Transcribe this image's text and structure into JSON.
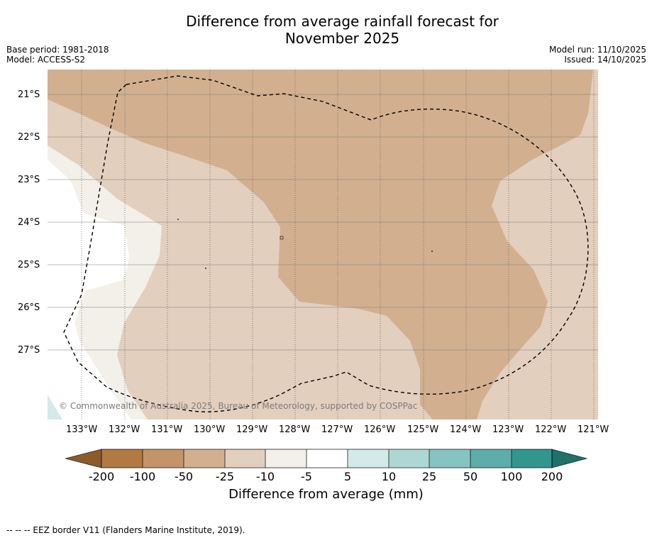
{
  "title_line1": "Difference from average rainfall forecast for",
  "title_line2": "November 2025",
  "base_period": "Base period: 1981-2018",
  "model": "Model: ACCESS-S2",
  "model_run": "Model run: 11/10/2025",
  "issued": "Issued: 14/10/2025",
  "lat_labels": [
    "21°S",
    "22°S",
    "23°S",
    "24°S",
    "25°S",
    "26°S",
    "27°S"
  ],
  "lon_labels": [
    "133°W",
    "132°W",
    "131°W",
    "130°W",
    "129°W",
    "128°W",
    "127°W",
    "126°W",
    "125°W",
    "124°W",
    "123°W",
    "122°W",
    "121°W"
  ],
  "copyright": "© Commonwealth of Australia 2025, Bureau of Meteorology, supported by COSPPac",
  "colorbar": {
    "ticks": [
      "-200",
      "-100",
      "-50",
      "-25",
      "-10",
      "-5",
      "5",
      "10",
      "25",
      "50",
      "100",
      "200"
    ],
    "title": "Difference from average (mm)",
    "colors": [
      "#8c5a2b",
      "#b07a42",
      "#c29468",
      "#d2b08f",
      "#e2cfbd",
      "#f3efe9",
      "#ffffff",
      "#d2eae8",
      "#acd7d5",
      "#86c4c1",
      "#5dadaa",
      "#32968f",
      "#20706b"
    ]
  },
  "footnote": "--  --  -- EEZ border V11 (Flanders Marine Institute, 2019)."
}
